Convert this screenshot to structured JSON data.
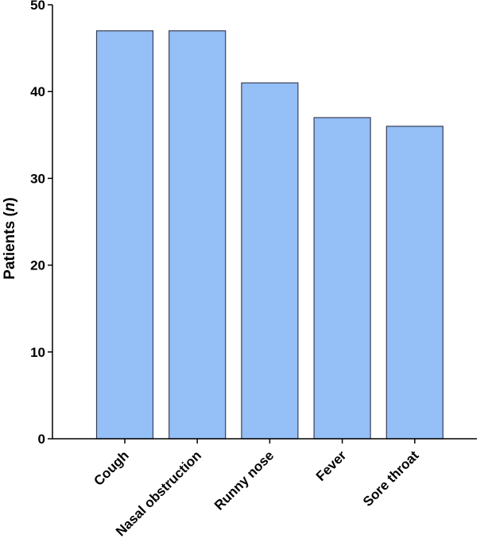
{
  "chart_data": {
    "type": "bar",
    "title": "",
    "xlabel": "",
    "ylabel": "Patients (n)",
    "ylabel_main": "Patients (",
    "ylabel_italic": "n",
    "ylabel_close": ")",
    "categories": [
      "Cough",
      "Nasal obstruction",
      "Runny nose",
      "Fever",
      "Sore throat"
    ],
    "values": [
      47,
      47,
      41,
      37,
      36
    ],
    "ylim": [
      0,
      50
    ],
    "yticks": [
      0,
      10,
      20,
      30,
      40,
      50
    ],
    "bar_color": "#94BFF7",
    "bar_stroke": "#3A3F55",
    "grid": false,
    "legend": "none"
  }
}
